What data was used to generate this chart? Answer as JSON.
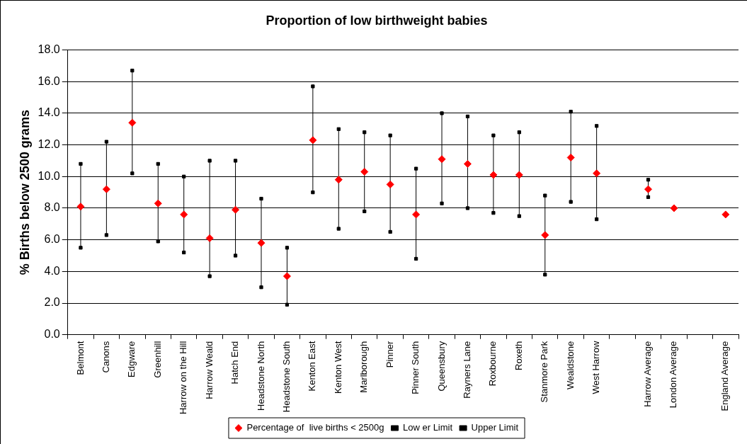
{
  "chart_data": {
    "type": "scatter",
    "title": "Proportion of low birthweight babies",
    "ylabel": "% Births below 2500 grams",
    "categories": [
      "Belmont",
      "Canons",
      "Edgware",
      "Greenhill",
      "Harrow on the Hill",
      "Harrow Weald",
      "Hatch End",
      "Headstone North",
      "Headstone South",
      "Kenton East",
      "Kenton West",
      "Marlborough",
      "Pinner",
      "Pinner South",
      "Queensbury",
      "Rayners Lane",
      "Roxbourne",
      "Roxeth",
      "Stanmore Park",
      "Wealdstone",
      "West Harrow",
      null,
      "Harrow Average",
      "London Average",
      null,
      "England Average"
    ],
    "series": [
      {
        "name": "Percentage of  live births < 2500g",
        "color": "#ff0000",
        "marker": "diamond",
        "values": [
          8.1,
          9.2,
          13.4,
          8.3,
          7.6,
          6.1,
          7.9,
          5.8,
          3.7,
          12.3,
          9.8,
          10.3,
          9.5,
          7.6,
          11.1,
          10.8,
          10.1,
          10.1,
          6.3,
          11.2,
          10.2,
          null,
          9.2,
          8.0,
          null,
          7.6
        ]
      },
      {
        "name": "Low er Limit",
        "color": "#000000",
        "marker": "square",
        "values": [
          5.5,
          6.3,
          10.2,
          5.9,
          5.2,
          3.7,
          5.0,
          3.0,
          1.9,
          9.0,
          6.7,
          7.8,
          6.5,
          4.8,
          8.3,
          8.0,
          7.7,
          7.5,
          3.8,
          8.4,
          7.3,
          null,
          8.7,
          null,
          null,
          null
        ]
      },
      {
        "name": "Upper Limit",
        "color": "#000000",
        "marker": "square",
        "values": [
          10.8,
          12.2,
          16.7,
          10.8,
          10.0,
          11.0,
          11.0,
          8.6,
          5.5,
          15.7,
          13.0,
          12.8,
          12.6,
          10.5,
          14.0,
          13.8,
          12.6,
          12.8,
          8.8,
          14.1,
          13.2,
          null,
          9.8,
          null,
          null,
          null
        ]
      }
    ],
    "ylim": [
      0,
      18
    ],
    "yticks": [
      {
        "value": 0,
        "label": "0.0"
      },
      {
        "value": 2,
        "label": "2.0"
      },
      {
        "value": 4,
        "label": "4.0"
      },
      {
        "value": 6,
        "label": "6.0"
      },
      {
        "value": 8,
        "label": "8.0"
      },
      {
        "value": 10,
        "label": "10.0"
      },
      {
        "value": 12,
        "label": "12.0"
      },
      {
        "value": 14,
        "label": "14.0"
      },
      {
        "value": 16,
        "label": "16.0"
      },
      {
        "value": 18,
        "label": "18.0"
      }
    ],
    "grid": "y",
    "legend": "bottom"
  }
}
